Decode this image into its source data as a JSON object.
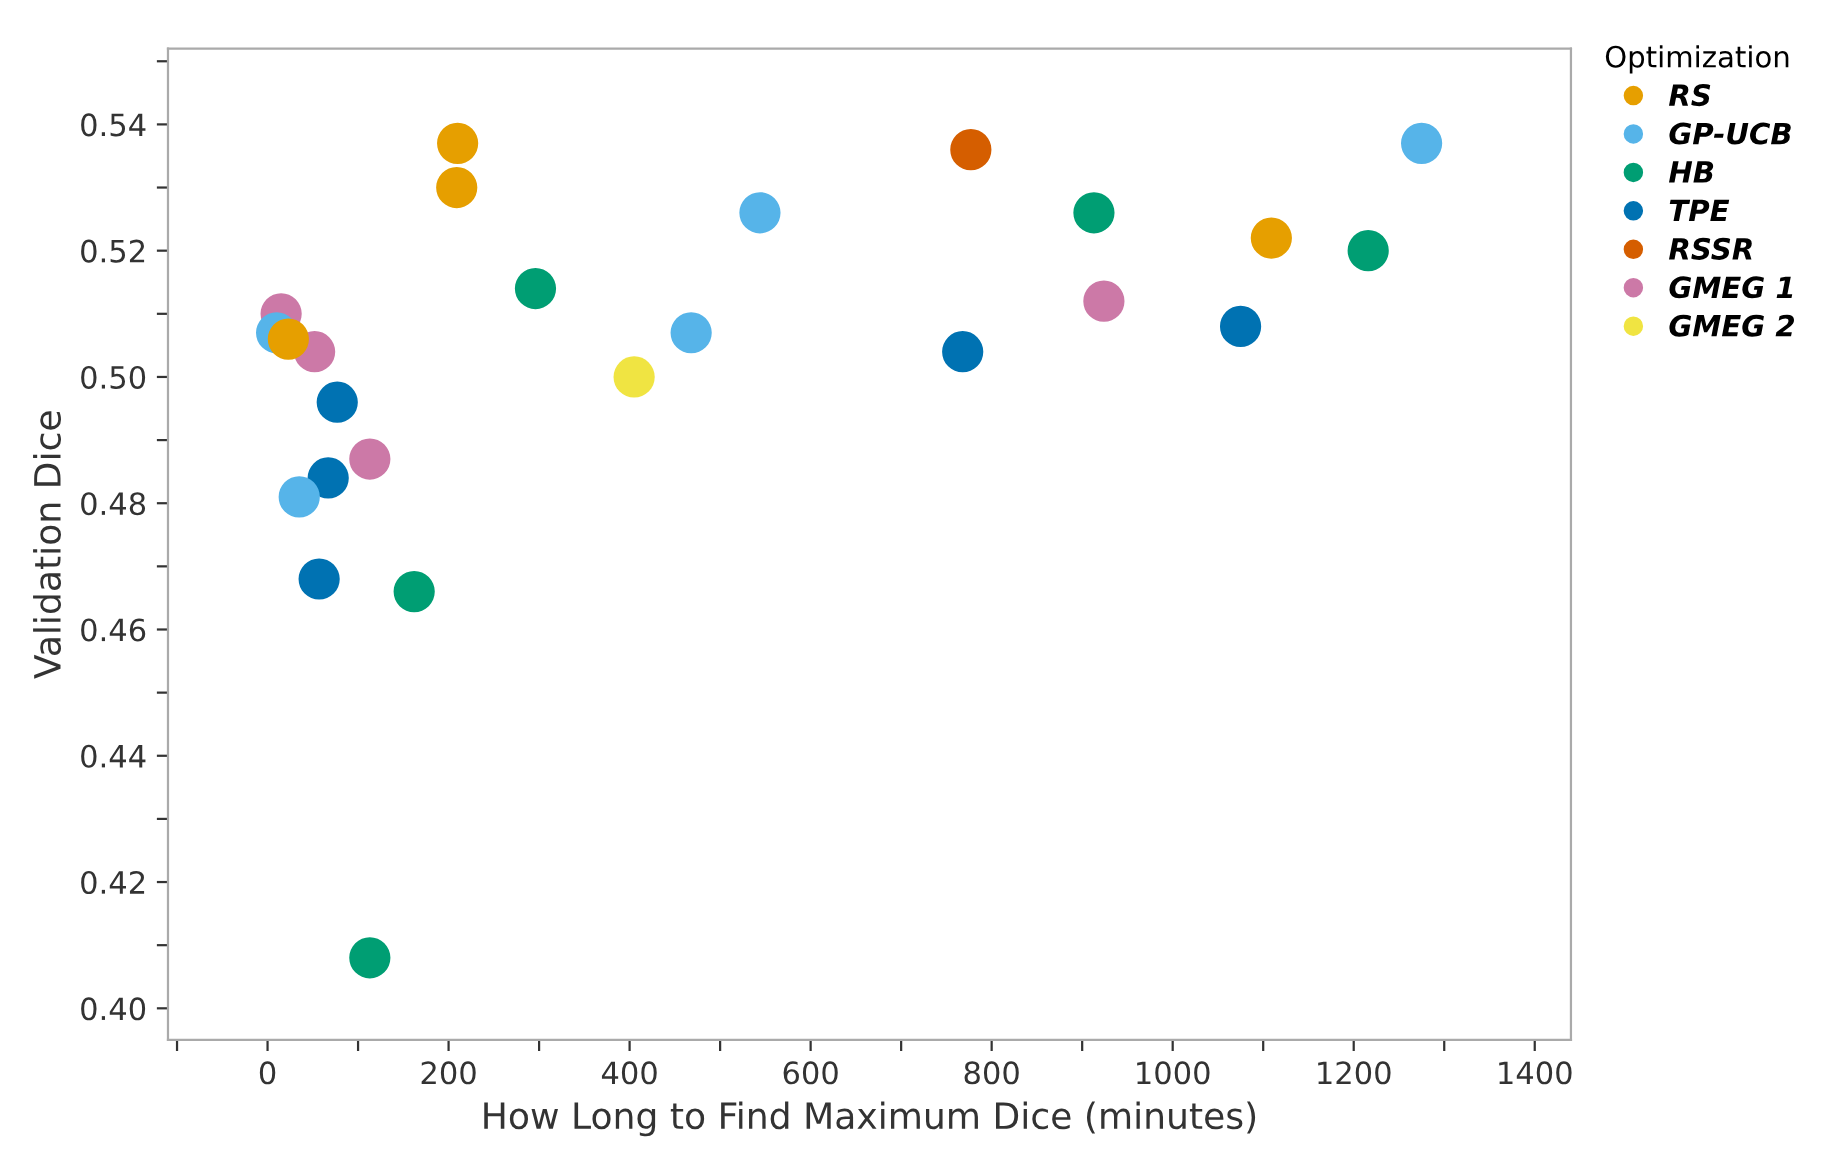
{
  "chart_data": {
    "type": "scatter",
    "xlabel": "How Long to Find Maximum Dice (minutes)",
    "ylabel": "Validation Dice",
    "legend_title": "Optimization",
    "legend": "right",
    "marker": "circle",
    "grid": false,
    "xlim": [
      -110,
      1440
    ],
    "ylim": [
      0.395,
      0.552
    ],
    "xticks": [
      {
        "value": -100,
        "label": null
      },
      0,
      {
        "value": 100,
        "label": null
      },
      200,
      {
        "value": 300,
        "label": null
      },
      400,
      {
        "value": 500,
        "label": null
      },
      600,
      {
        "value": 700,
        "label": null
      },
      800,
      {
        "value": 900,
        "label": null
      },
      1000,
      {
        "value": 1100,
        "label": null
      },
      1200,
      {
        "value": 1300,
        "label": null
      },
      1400
    ],
    "yticks": [
      {
        "value": 0.4,
        "label": "0.40"
      },
      {
        "value": 0.41,
        "label": null
      },
      {
        "value": 0.42,
        "label": "0.42"
      },
      {
        "value": 0.43,
        "label": null
      },
      {
        "value": 0.44,
        "label": "0.44"
      },
      {
        "value": 0.45,
        "label": null
      },
      {
        "value": 0.46,
        "label": "0.46"
      },
      {
        "value": 0.47,
        "label": null
      },
      {
        "value": 0.48,
        "label": "0.48"
      },
      {
        "value": 0.49,
        "label": null
      },
      {
        "value": 0.5,
        "label": "0.50"
      },
      {
        "value": 0.51,
        "label": null
      },
      {
        "value": 0.52,
        "label": "0.52"
      },
      {
        "value": 0.53,
        "label": null
      },
      {
        "value": 0.54,
        "label": "0.54"
      },
      {
        "value": 0.55,
        "label": null
      }
    ],
    "series": [
      {
        "name": "RS",
        "color": "#e69f00",
        "x": [
          210,
          209,
          23,
          1109
        ],
        "values": [
          0.537,
          0.53,
          0.506,
          0.522
        ]
      },
      {
        "name": "GP-UCB",
        "color": "#56b4e9",
        "x": [
          10,
          35,
          468,
          544,
          1275
        ],
        "values": [
          0.507,
          0.481,
          0.507,
          0.526,
          0.537
        ]
      },
      {
        "name": "HB",
        "color": "#009e73",
        "x": [
          296,
          162,
          113,
          913,
          1216
        ],
        "values": [
          0.514,
          0.466,
          0.408,
          0.526,
          0.52
        ]
      },
      {
        "name": "TPE",
        "color": "#0072b2",
        "x": [
          77,
          67,
          57,
          768,
          1075
        ],
        "values": [
          0.496,
          0.484,
          0.468,
          0.504,
          0.508
        ]
      },
      {
        "name": "RSSR",
        "color": "#d55e00",
        "x": [
          777
        ],
        "values": [
          0.536
        ]
      },
      {
        "name": "GMEG 1",
        "color": "#cc79a7",
        "x": [
          15,
          52,
          113,
          924
        ],
        "values": [
          0.51,
          0.504,
          0.487,
          0.512
        ]
      },
      {
        "name": "GMEG 2",
        "color": "#f0e442",
        "x": [
          405
        ],
        "values": [
          0.5
        ]
      }
    ]
  }
}
